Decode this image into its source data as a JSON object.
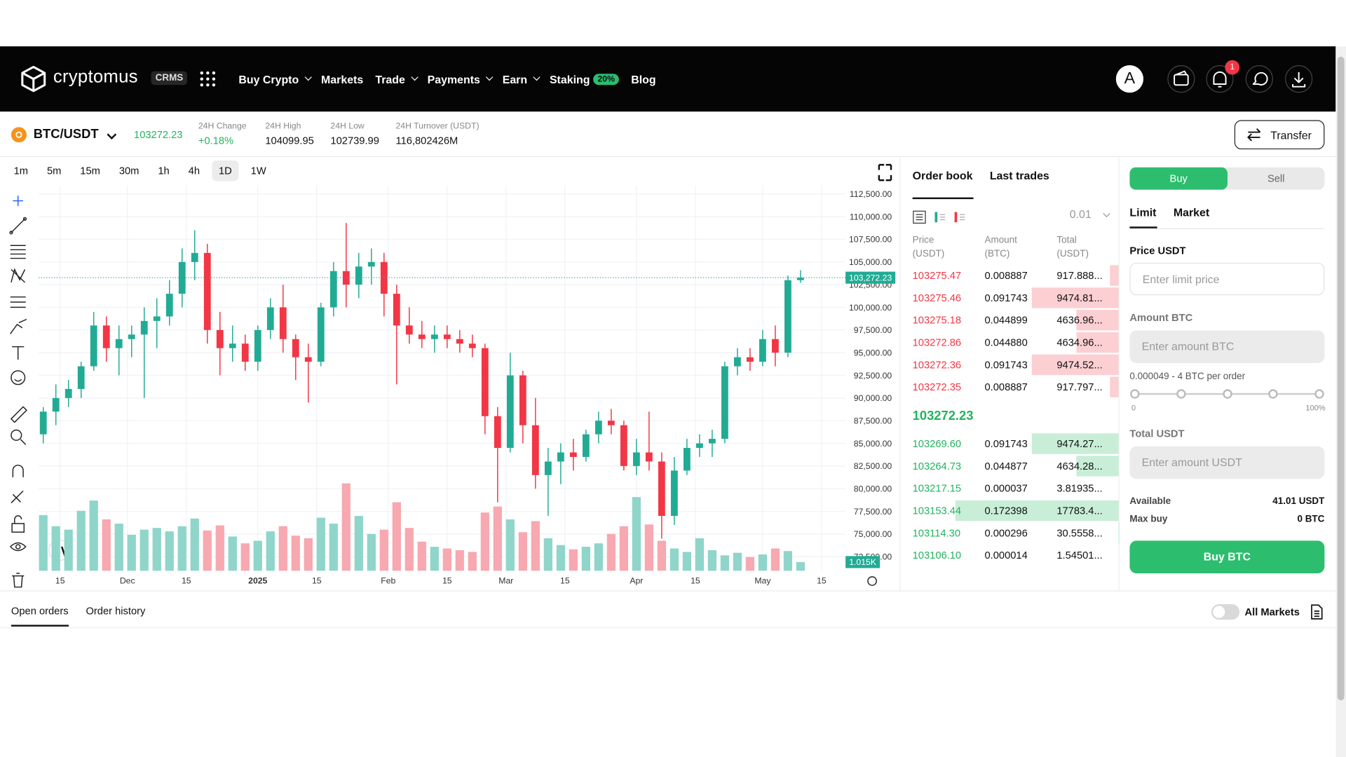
{
  "nav": {
    "brand": "cryptomus",
    "token": "CRMS",
    "menu": [
      {
        "label": "Buy Crypto",
        "dropdown": true
      },
      {
        "label": "Markets"
      },
      {
        "label": "Trade",
        "dropdown": true
      },
      {
        "label": "Payments",
        "dropdown": true
      },
      {
        "label": "Earn",
        "dropdown": true
      },
      {
        "label": "Staking",
        "badge": "20%"
      },
      {
        "label": "Blog"
      }
    ],
    "avatar": "A",
    "notification_count": 1
  },
  "ticker": {
    "pair": "BTC/USDT",
    "price": "103272.23",
    "stats": [
      {
        "label": "24H Change",
        "value": "+0.18%"
      },
      {
        "label": "24H High",
        "value": "104099.95"
      },
      {
        "label": "24H Low",
        "value": "102739.99"
      },
      {
        "label": "24H Turnover (USDT)",
        "value": "116,802426M"
      }
    ],
    "transfer": "Transfer"
  },
  "timeframes": {
    "options": [
      "1m",
      "5m",
      "15m",
      "30m",
      "1h",
      "4h",
      "1D",
      "1W"
    ],
    "active": "1D"
  },
  "chart_data": {
    "type": "candlestick",
    "up_color": "#22ab94",
    "down_color": "#f23645",
    "up_volume_color": "#8fd5ca",
    "down_volume_color": "#f7a8b0",
    "grid": true,
    "x": [
      -4,
      -1,
      2,
      5,
      8,
      11,
      14,
      17,
      20,
      23,
      26,
      29,
      32,
      35,
      38,
      41,
      44,
      47,
      50,
      53,
      56,
      59,
      62,
      65,
      68,
      71,
      74,
      77,
      80,
      83,
      86,
      89,
      92,
      95,
      98,
      101,
      104,
      107,
      110,
      113,
      116,
      119,
      122,
      125,
      128,
      131,
      134,
      137,
      140,
      143,
      146,
      149,
      152,
      155,
      158,
      161,
      164,
      167,
      170,
      173,
      176
    ],
    "ohlc": [
      [
        86000,
        89000,
        85000,
        88500
      ],
      [
        88500,
        91500,
        87000,
        90000
      ],
      [
        90000,
        92000,
        89000,
        91000
      ],
      [
        91000,
        94000,
        90000,
        93500
      ],
      [
        93500,
        99500,
        93000,
        98000
      ],
      [
        98000,
        99000,
        94000,
        95500
      ],
      [
        95500,
        98000,
        92500,
        96500
      ],
      [
        96500,
        98000,
        94500,
        97000
      ],
      [
        97000,
        100000,
        90000,
        98500
      ],
      [
        98500,
        101000,
        95500,
        99000
      ],
      [
        99000,
        103000,
        98000,
        101500
      ],
      [
        101500,
        106500,
        100000,
        105000
      ],
      [
        105000,
        108500,
        103000,
        106000
      ],
      [
        106000,
        107000,
        96000,
        97500
      ],
      [
        97500,
        99500,
        92500,
        95500
      ],
      [
        95500,
        98000,
        94000,
        96000
      ],
      [
        96000,
        97000,
        93000,
        94000
      ],
      [
        94000,
        98000,
        93000,
        97500
      ],
      [
        97500,
        101000,
        96500,
        100000
      ],
      [
        100000,
        102500,
        95000,
        96500
      ],
      [
        96500,
        97000,
        92000,
        94500
      ],
      [
        94500,
        96000,
        89500,
        94000
      ],
      [
        94000,
        100500,
        93500,
        100000
      ],
      [
        100000,
        105000,
        99000,
        104000
      ],
      [
        104000,
        109300,
        100000,
        102500
      ],
      [
        102500,
        106000,
        101000,
        104500
      ],
      [
        104500,
        106500,
        102500,
        105000
      ],
      [
        105000,
        106000,
        99000,
        101500
      ],
      [
        101500,
        102500,
        91500,
        98000
      ],
      [
        98000,
        100000,
        96000,
        97000
      ],
      [
        97000,
        98500,
        95500,
        96500
      ],
      [
        96500,
        98000,
        95000,
        97000
      ],
      [
        97000,
        98000,
        95500,
        96500
      ],
      [
        96500,
        97500,
        95000,
        96000
      ],
      [
        96000,
        97000,
        94500,
        95500
      ],
      [
        95500,
        96000,
        86000,
        88000
      ],
      [
        88000,
        89000,
        78500,
        84500
      ],
      [
        84500,
        95000,
        84000,
        92500
      ],
      [
        92500,
        93000,
        85000,
        87000
      ],
      [
        87000,
        90000,
        80000,
        81500
      ],
      [
        81500,
        84500,
        77000,
        83000
      ],
      [
        83000,
        85000,
        80500,
        84000
      ],
      [
        84000,
        85500,
        82000,
        83500
      ],
      [
        83500,
        86500,
        83000,
        86000
      ],
      [
        86000,
        88500,
        85000,
        87500
      ],
      [
        87500,
        88800,
        86000,
        87000
      ],
      [
        87000,
        87500,
        82000,
        82500
      ],
      [
        82500,
        85500,
        81500,
        84000
      ],
      [
        84000,
        88500,
        82000,
        83000
      ],
      [
        83000,
        84000,
        74500,
        77000
      ],
      [
        77000,
        83500,
        76000,
        82000
      ],
      [
        82000,
        85500,
        81500,
        84500
      ],
      [
        84500,
        86000,
        83500,
        85000
      ],
      [
        85000,
        86500,
        83500,
        85500
      ],
      [
        85500,
        94000,
        85000,
        93500
      ],
      [
        93500,
        95500,
        92500,
        94500
      ],
      [
        94500,
        95500,
        93000,
        94000
      ],
      [
        94000,
        97500,
        93500,
        96500
      ],
      [
        96500,
        98000,
        93500,
        95000
      ],
      [
        95000,
        103500,
        94500,
        103000
      ],
      [
        103000,
        104100,
        102700,
        103272.23
      ]
    ],
    "volume": [
      6500,
      5200,
      4800,
      7000,
      8200,
      6000,
      5500,
      4200,
      4800,
      5000,
      4600,
      5200,
      6100,
      4700,
      5300,
      4000,
      3200,
      3500,
      4600,
      5200,
      4100,
      3800,
      6200,
      5500,
      10200,
      6400,
      4300,
      4800,
      8000,
      5000,
      3400,
      2800,
      2600,
      2400,
      2200,
      6800,
      7500,
      6000,
      4500,
      5800,
      3800,
      3000,
      2500,
      2800,
      3200,
      4300,
      5200,
      8600,
      5400,
      3500,
      2600,
      2200,
      3800,
      2400,
      1800,
      2100,
      1600,
      1900,
      2600,
      2300,
      1015
    ],
    "volume_value_labels": [
      null,
      null,
      null,
      null,
      null,
      null,
      null,
      null,
      null,
      null,
      null,
      null,
      null,
      null,
      null,
      null,
      null,
      null,
      null,
      null,
      null,
      null,
      null,
      null,
      null,
      null,
      null,
      null,
      null,
      null,
      null,
      null,
      null,
      null,
      null,
      null,
      null,
      null,
      null,
      null,
      null,
      null,
      null,
      null,
      null,
      null,
      null,
      null,
      null,
      null,
      null,
      null,
      null,
      null,
      null,
      null,
      null,
      null,
      null,
      null,
      "1.015K"
    ],
    "volume_lim": [
      0,
      45000
    ],
    "last_price": {
      "value": 103272.23,
      "label": "103,272.23"
    },
    "xlim": [
      -5.1,
      186.7
    ],
    "xticks": [
      {
        "value": 0,
        "label": "15"
      },
      {
        "value": 16,
        "label": "Dec"
      },
      {
        "value": 30,
        "label": "15"
      },
      {
        "value": 47,
        "label": "2025"
      },
      {
        "value": 61,
        "label": "15"
      },
      {
        "value": 78,
        "label": "Feb"
      },
      {
        "value": 92,
        "label": "15"
      },
      {
        "value": 106,
        "label": "Mar"
      },
      {
        "value": 120,
        "label": "15"
      },
      {
        "value": 137,
        "label": "Apr"
      },
      {
        "value": 151,
        "label": "15"
      },
      {
        "value": 167,
        "label": "May"
      },
      {
        "value": 181,
        "label": "15"
      }
    ],
    "ylim": [
      70950,
      113450
    ],
    "yticks": [
      {
        "value": 72500,
        "label": "72,500.00"
      },
      {
        "value": 75000,
        "label": "75,000.00"
      },
      {
        "value": 77500,
        "label": "77,500.00"
      },
      {
        "value": 80000,
        "label": "80,000.00"
      },
      {
        "value": 82500,
        "label": "82,500.00"
      },
      {
        "value": 85000,
        "label": "85,000.00"
      },
      {
        "value": 87500,
        "label": "87,500.00"
      },
      {
        "value": 90000,
        "label": "90,000.00"
      },
      {
        "value": 92500,
        "label": "92,500.00"
      },
      {
        "value": 95000,
        "label": "95,000.00"
      },
      {
        "value": 97500,
        "label": "97,500.00"
      },
      {
        "value": 100000,
        "label": "100,000.00"
      },
      {
        "value": 102500,
        "label": "102,500.00"
      },
      {
        "value": 105000,
        "label": "105,000.00"
      },
      {
        "value": 107500,
        "label": "107,500.00"
      },
      {
        "value": 110000,
        "label": "110,000.00"
      },
      {
        "value": 112500,
        "label": "112,500.00"
      }
    ]
  },
  "order_book": {
    "tabs": [
      "Order book",
      "Last trades"
    ],
    "precision": "0.01",
    "columns": [
      "Price (USDT)",
      "Amount (BTC)",
      "Total (USDT)"
    ],
    "asks": [
      [
        "103275.47",
        "0.008887",
        "917.888..."
      ],
      [
        "103275.46",
        "0.091743",
        "9474.81..."
      ],
      [
        "103275.18",
        "0.044899",
        "4636.96..."
      ],
      [
        "103272.86",
        "0.044880",
        "4634.96..."
      ],
      [
        "103272.36",
        "0.091743",
        "9474.52..."
      ],
      [
        "103272.35",
        "0.008887",
        "917.797..."
      ]
    ],
    "mid_price": "103272.23",
    "bids": [
      [
        "103269.60",
        "0.091743",
        "9474.27..."
      ],
      [
        "103264.73",
        "0.044877",
        "4634.28..."
      ],
      [
        "103217.15",
        "0.000037",
        "3.81935..."
      ],
      [
        "103153.44",
        "0.172398",
        "17783.4..."
      ],
      [
        "103114.30",
        "0.000296",
        "30.5558..."
      ],
      [
        "103106.10",
        "0.000014",
        "1.54501..."
      ]
    ]
  },
  "trade_panel": {
    "sides": [
      "Buy",
      "Sell"
    ],
    "order_types": [
      "Limit",
      "Market"
    ],
    "price_label": "Price USDT",
    "price_placeholder": "Enter limit price",
    "amount_label": "Amount BTC",
    "amount_placeholder": "Enter amount BTC",
    "order_range": "0.000049 - 4 BTC per order",
    "slider_min": "0",
    "slider_max": "100%",
    "total_label": "Total USDT",
    "total_placeholder": "Enter amount USDT",
    "available_label": "Available",
    "available_value": "41.01 USDT",
    "max_buy_label": "Max buy",
    "max_buy_value": "0 BTC",
    "submit": "Buy BTC"
  },
  "bottom": {
    "tabs": [
      "Open orders",
      "Order history"
    ],
    "all_markets": "All Markets"
  }
}
